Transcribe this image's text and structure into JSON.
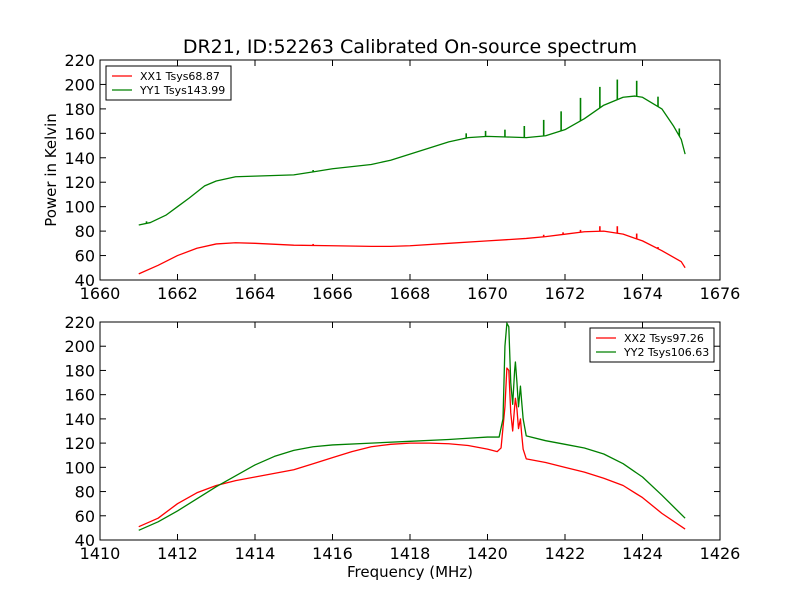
{
  "figure": {
    "title": "DR21, ID:52263 Calibrated On-source spectrum",
    "ylabel": "Power in Kelvin",
    "xlabel": "Frequency (MHz)"
  },
  "colors": {
    "red": "#ff0000",
    "green": "#008000"
  },
  "chart_data": [
    {
      "type": "line",
      "title": "DR21, ID:52263 Calibrated On-source spectrum",
      "ylabel": "Power in Kelvin",
      "xlabel": "",
      "xlim": [
        1660,
        1676
      ],
      "ylim": [
        40,
        220
      ],
      "xticks": [
        1660,
        1662,
        1664,
        1666,
        1668,
        1670,
        1672,
        1674,
        1676
      ],
      "yticks": [
        40,
        60,
        80,
        100,
        120,
        140,
        160,
        180,
        200,
        220
      ],
      "grid": false,
      "legend_position": "top-left",
      "series": [
        {
          "name": "XX1 Tsys68.87",
          "color": "#ff0000",
          "points": [
            [
              1661.0,
              45
            ],
            [
              1661.5,
              52
            ],
            [
              1662.0,
              60
            ],
            [
              1662.5,
              66
            ],
            [
              1663.0,
              69.5
            ],
            [
              1663.5,
              70.5
            ],
            [
              1664.0,
              70
            ],
            [
              1665.0,
              68.5
            ],
            [
              1666.0,
              68
            ],
            [
              1667.0,
              67.5
            ],
            [
              1667.5,
              67.5
            ],
            [
              1668.0,
              68
            ],
            [
              1669.0,
              70
            ],
            [
              1670.0,
              72
            ],
            [
              1670.5,
              73
            ],
            [
              1671.0,
              74
            ],
            [
              1671.5,
              75.5
            ],
            [
              1672.0,
              77.5
            ],
            [
              1672.5,
              79.5
            ],
            [
              1673.0,
              80
            ],
            [
              1673.5,
              77.5
            ],
            [
              1674.0,
              72
            ],
            [
              1674.5,
              64
            ],
            [
              1675.0,
              55
            ],
            [
              1675.1,
              50
            ]
          ],
          "spikes": [
            [
              1665.5,
              69.5
            ],
            [
              1671.45,
              77
            ],
            [
              1671.95,
              79
            ],
            [
              1672.4,
              81
            ],
            [
              1672.9,
              84
            ],
            [
              1673.35,
              84
            ],
            [
              1673.85,
              78
            ],
            [
              1674.4,
              67
            ],
            [
              1674.9,
              57
            ]
          ]
        },
        {
          "name": "YY1 Tsys143.99",
          "color": "#008000",
          "points": [
            [
              1661.0,
              85
            ],
            [
              1661.3,
              87
            ],
            [
              1661.7,
              93
            ],
            [
              1662.0,
              100
            ],
            [
              1662.3,
              107
            ],
            [
              1662.7,
              117
            ],
            [
              1663.0,
              121
            ],
            [
              1663.5,
              124.5
            ],
            [
              1664.0,
              125
            ],
            [
              1665.0,
              126
            ],
            [
              1665.5,
              128.5
            ],
            [
              1666.0,
              131
            ],
            [
              1667.0,
              134.5
            ],
            [
              1667.5,
              138
            ],
            [
              1668.0,
              143
            ],
            [
              1668.5,
              148
            ],
            [
              1669.0,
              153
            ],
            [
              1669.5,
              156.5
            ],
            [
              1670.0,
              157.5
            ],
            [
              1670.5,
              157
            ],
            [
              1671.0,
              156.5
            ],
            [
              1671.5,
              158
            ],
            [
              1672.0,
              163
            ],
            [
              1672.5,
              172
            ],
            [
              1673.0,
              183
            ],
            [
              1673.5,
              189.5
            ],
            [
              1673.8,
              190.5
            ],
            [
              1674.0,
              189.5
            ],
            [
              1674.5,
              180
            ],
            [
              1674.8,
              166
            ],
            [
              1675.0,
              155
            ],
            [
              1675.1,
              143
            ]
          ],
          "spikes": [
            [
              1661.2,
              88
            ],
            [
              1665.5,
              130
            ],
            [
              1669.45,
              160
            ],
            [
              1669.95,
              162
            ],
            [
              1670.45,
              163
            ],
            [
              1670.95,
              166
            ],
            [
              1671.45,
              171
            ],
            [
              1671.9,
              178
            ],
            [
              1672.4,
              189
            ],
            [
              1672.9,
              198
            ],
            [
              1673.35,
              204
            ],
            [
              1673.85,
              203
            ],
            [
              1674.4,
              190
            ],
            [
              1674.95,
              164
            ]
          ]
        }
      ]
    },
    {
      "type": "line",
      "title": "",
      "xlabel": "Frequency (MHz)",
      "ylabel": "",
      "xlim": [
        1410,
        1426
      ],
      "ylim": [
        40,
        220
      ],
      "xticks": [
        1410,
        1412,
        1414,
        1416,
        1418,
        1420,
        1422,
        1424,
        1426
      ],
      "yticks": [
        40,
        60,
        80,
        100,
        120,
        140,
        160,
        180,
        200,
        220
      ],
      "grid": false,
      "legend_position": "top-right",
      "series": [
        {
          "name": "XX2 Tsys97.26",
          "color": "#ff0000",
          "points": [
            [
              1411.0,
              51
            ],
            [
              1411.5,
              58
            ],
            [
              1412.0,
              70
            ],
            [
              1412.5,
              79
            ],
            [
              1413.0,
              85
            ],
            [
              1413.5,
              89
            ],
            [
              1414.0,
              92
            ],
            [
              1414.5,
              95
            ],
            [
              1415.0,
              98
            ],
            [
              1415.5,
              103
            ],
            [
              1416.0,
              108
            ],
            [
              1416.5,
              113
            ],
            [
              1417.0,
              117
            ],
            [
              1417.5,
              119
            ],
            [
              1418.0,
              120
            ],
            [
              1418.5,
              120
            ],
            [
              1419.0,
              119.5
            ],
            [
              1419.5,
              118
            ],
            [
              1420.0,
              115
            ],
            [
              1420.25,
              113
            ],
            [
              1420.35,
              116
            ],
            [
              1420.45,
              150
            ],
            [
              1420.5,
              182
            ],
            [
              1420.55,
              180
            ],
            [
              1420.6,
              145
            ],
            [
              1420.65,
              130
            ],
            [
              1420.7,
              150
            ],
            [
              1420.72,
              157
            ],
            [
              1420.76,
              148
            ],
            [
              1420.8,
              132
            ],
            [
              1420.85,
              140
            ],
            [
              1420.88,
              128
            ],
            [
              1420.92,
              115
            ],
            [
              1421.0,
              107
            ],
            [
              1421.5,
              104
            ],
            [
              1422.0,
              100
            ],
            [
              1422.5,
              96
            ],
            [
              1423.0,
              91
            ],
            [
              1423.5,
              85
            ],
            [
              1424.0,
              75
            ],
            [
              1424.5,
              62
            ],
            [
              1425.1,
              49
            ]
          ]
        },
        {
          "name": "YY2 Tsys106.63",
          "color": "#008000",
          "points": [
            [
              1411.0,
              48
            ],
            [
              1411.5,
              55
            ],
            [
              1412.0,
              64
            ],
            [
              1412.5,
              74
            ],
            [
              1413.0,
              84
            ],
            [
              1413.5,
              93
            ],
            [
              1414.0,
              102
            ],
            [
              1414.5,
              109
            ],
            [
              1415.0,
              114
            ],
            [
              1415.5,
              117
            ],
            [
              1416.0,
              118.5
            ],
            [
              1417.0,
              120
            ],
            [
              1418.0,
              121.5
            ],
            [
              1419.0,
              123
            ],
            [
              1419.5,
              124
            ],
            [
              1420.0,
              125
            ],
            [
              1420.3,
              125
            ],
            [
              1420.4,
              140
            ],
            [
              1420.45,
              200
            ],
            [
              1420.5,
              219
            ],
            [
              1420.55,
              216
            ],
            [
              1420.6,
              170
            ],
            [
              1420.65,
              152
            ],
            [
              1420.7,
              180
            ],
            [
              1420.72,
              187
            ],
            [
              1420.76,
              170
            ],
            [
              1420.8,
              150
            ],
            [
              1420.85,
              167
            ],
            [
              1420.88,
              155
            ],
            [
              1420.92,
              140
            ],
            [
              1421.0,
              126
            ],
            [
              1421.5,
              122
            ],
            [
              1422.0,
              119
            ],
            [
              1422.5,
              116
            ],
            [
              1423.0,
              111
            ],
            [
              1423.5,
              103
            ],
            [
              1424.0,
              92
            ],
            [
              1424.5,
              77
            ],
            [
              1425.1,
              58
            ]
          ]
        }
      ]
    }
  ]
}
